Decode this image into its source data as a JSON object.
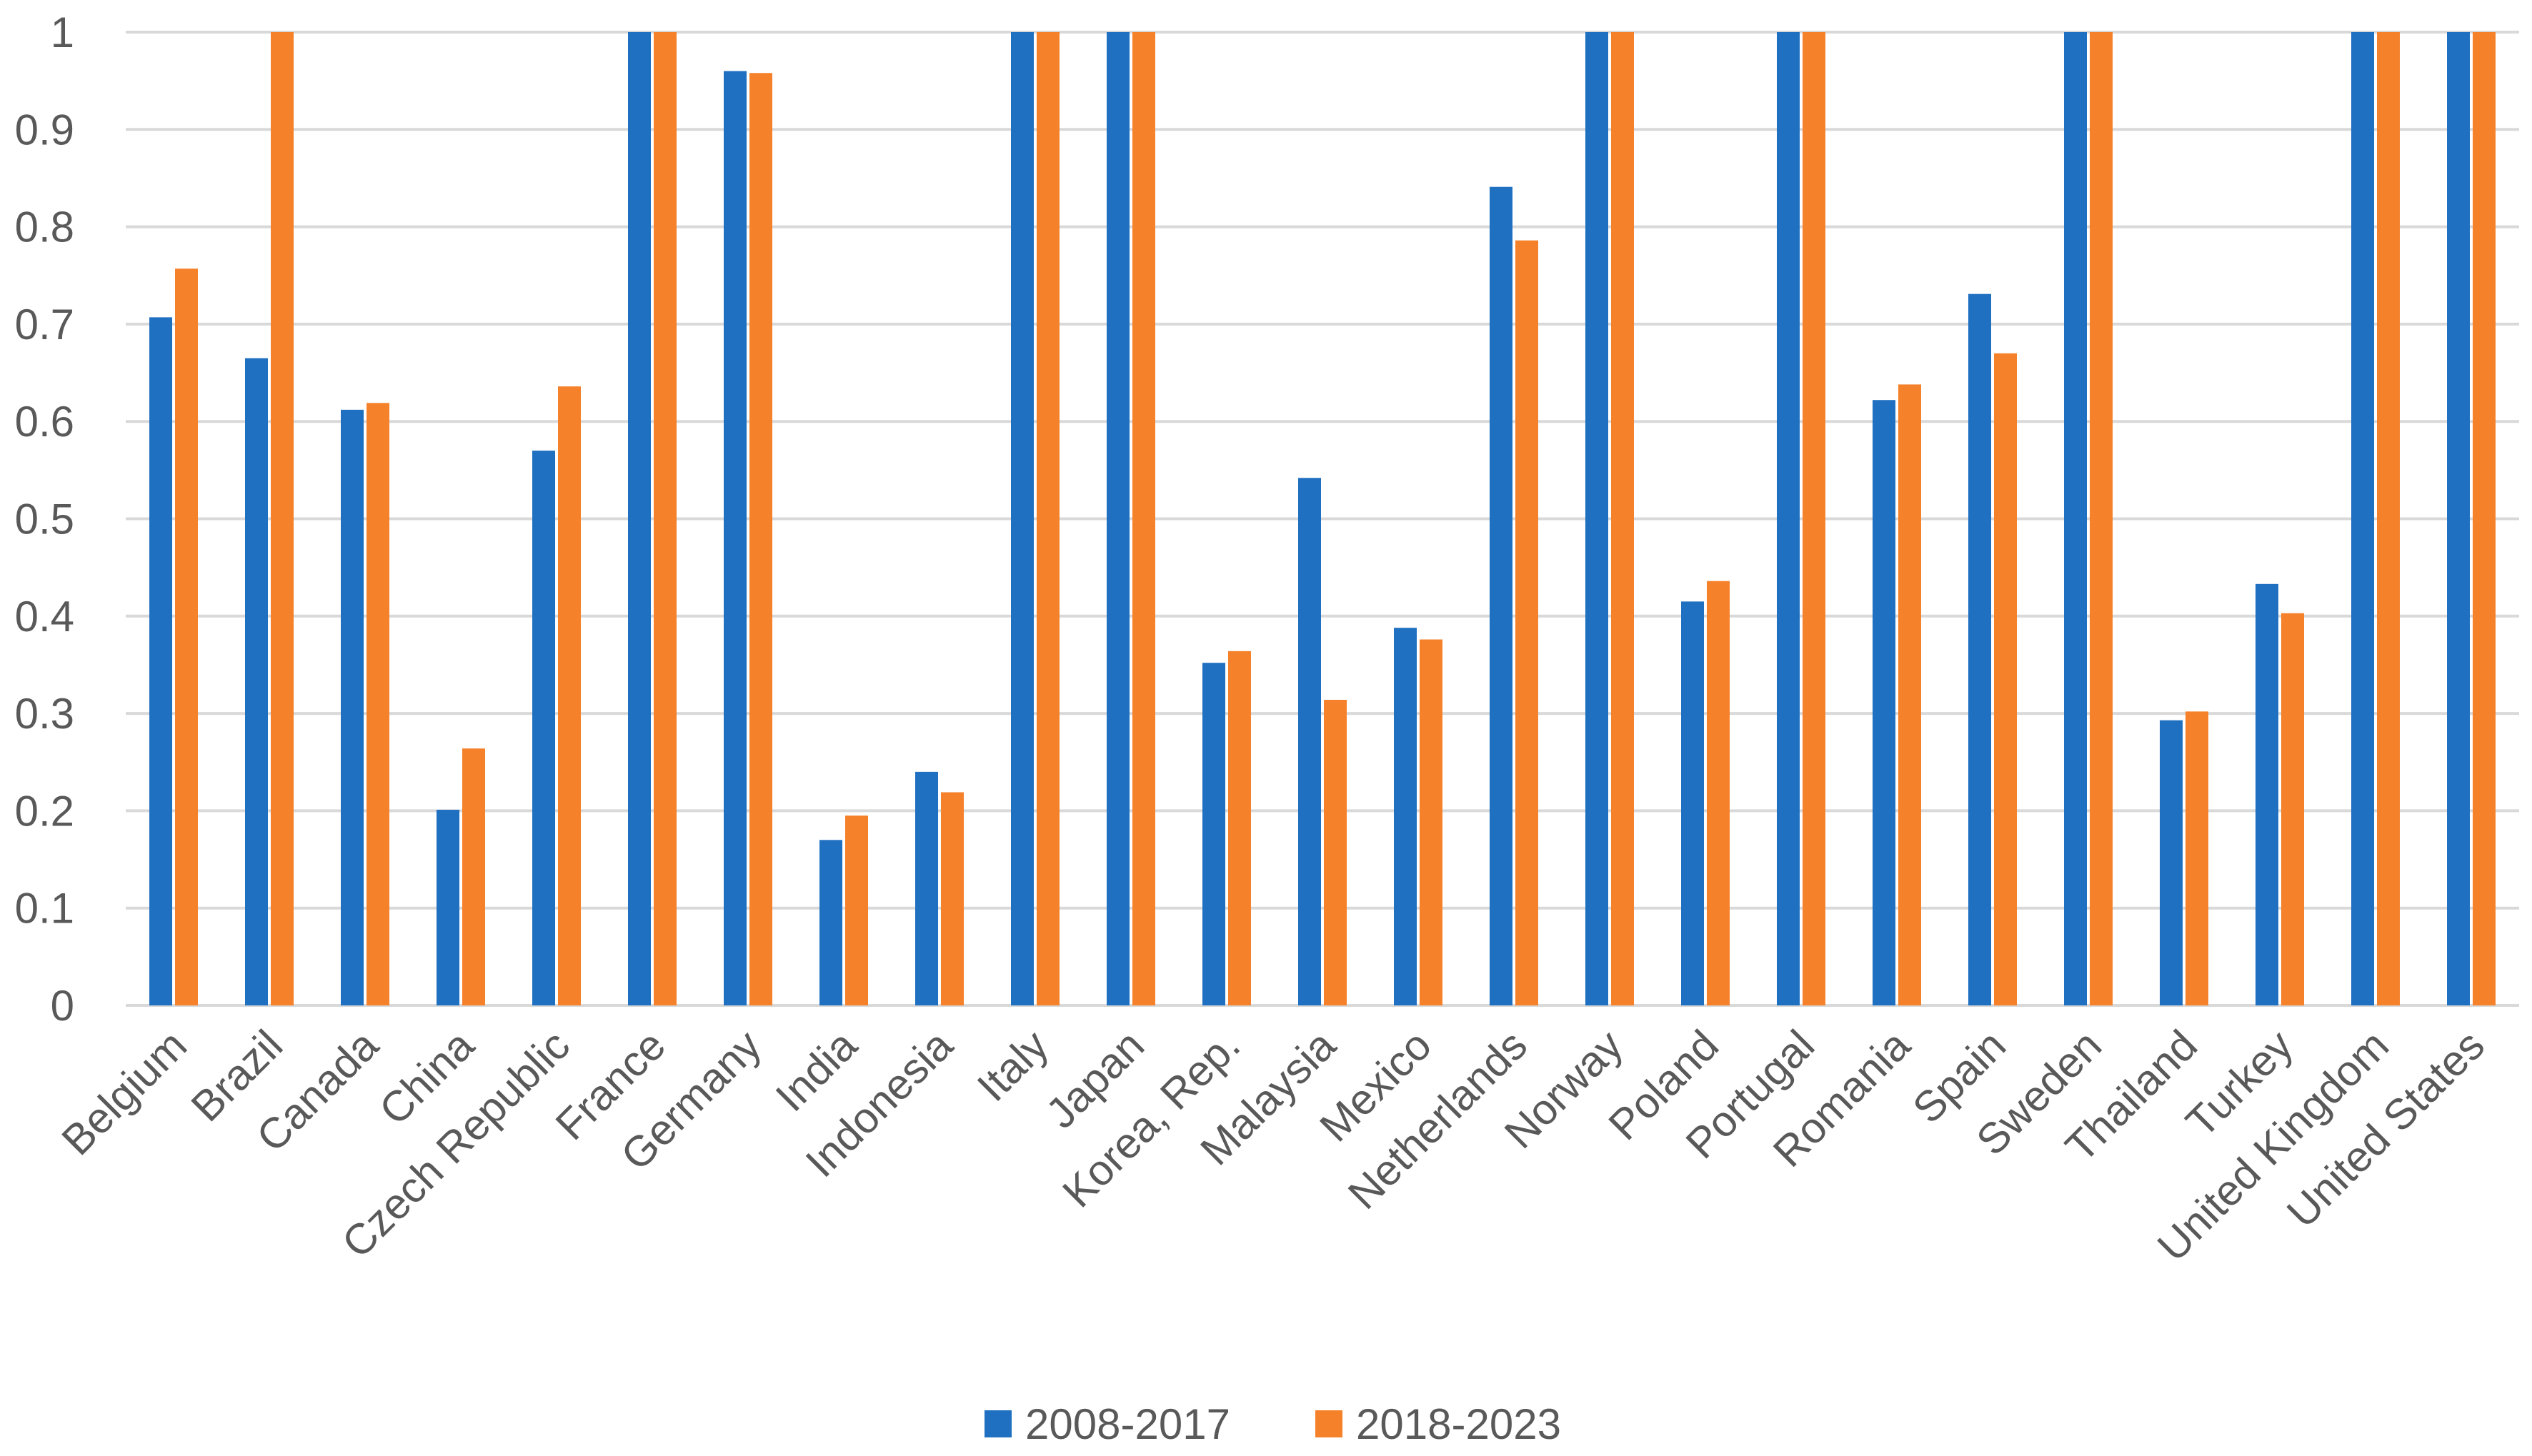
{
  "chart_data": {
    "type": "bar",
    "categories": [
      "Belgium",
      "Brazil",
      "Canada",
      "China",
      "Czech Republic",
      "France",
      "Germany",
      "India",
      "Indonesia",
      "Italy",
      "Japan",
      "Korea, Rep.",
      "Malaysia",
      "Mexico",
      "Netherlands",
      "Norway",
      "Poland",
      "Portugal",
      "Romania",
      "Spain",
      "Sweden",
      "Thailand",
      "Turkey",
      "United Kingdom",
      "United States"
    ],
    "series": [
      {
        "name": "2008-2017",
        "color": "#1f70c1",
        "values": [
          0.707,
          0.665,
          0.612,
          0.201,
          0.57,
          1,
          0.96,
          0.17,
          0.24,
          1,
          1,
          0.352,
          0.542,
          0.388,
          0.841,
          1,
          0.415,
          1,
          0.622,
          0.731,
          1,
          0.293,
          0.433,
          1,
          1
        ]
      },
      {
        "name": "2018-2023",
        "color": "#f5812a",
        "values": [
          0.757,
          1,
          0.619,
          0.264,
          0.636,
          1,
          0.958,
          0.195,
          0.219,
          1,
          1,
          0.364,
          0.314,
          0.376,
          0.786,
          1,
          0.436,
          1,
          0.638,
          0.67,
          1,
          0.302,
          0.403,
          1,
          1
        ]
      }
    ],
    "ylim": [
      0,
      1
    ],
    "yticks": [
      0,
      0.1,
      0.2,
      0.3,
      0.4,
      0.5,
      0.6,
      0.7,
      0.8,
      0.9,
      1
    ],
    "grid": true,
    "legend": "bottom"
  }
}
